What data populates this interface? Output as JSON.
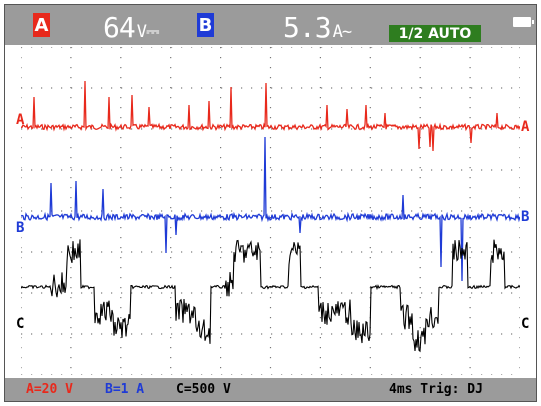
{
  "header": {
    "channel_a_badge": "A",
    "channel_a_value": "64",
    "channel_a_unit": "V⎓",
    "channel_b_badge": "B",
    "channel_b_value": "5.3",
    "channel_b_unit": "A~",
    "timebase_mode": "1/2 AUTO"
  },
  "traces": {
    "a_label": "A",
    "b_label": "B",
    "c_label": "C"
  },
  "footer": {
    "a_scale": "A=20 V",
    "b_scale": "B=1 A",
    "c_scale": "C=500 V",
    "time_trigger": "4ms Trig: DJ"
  },
  "colors": {
    "channel_a": "#e8291c",
    "channel_b": "#1f3bd6",
    "channel_c": "#000000",
    "bar_gray": "#9b9b9b",
    "auto_green": "#2e7d1f"
  }
}
